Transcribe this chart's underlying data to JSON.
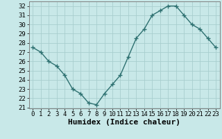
{
  "xlabel": "Humidex (Indice chaleur)",
  "x": [
    0,
    1,
    2,
    3,
    4,
    5,
    6,
    7,
    8,
    9,
    10,
    11,
    12,
    13,
    14,
    15,
    16,
    17,
    18,
    19,
    20,
    21,
    22,
    23
  ],
  "y": [
    27.5,
    27.0,
    26.0,
    25.5,
    24.5,
    23.0,
    22.5,
    21.5,
    21.3,
    22.5,
    23.5,
    24.5,
    26.5,
    28.5,
    29.5,
    31.0,
    31.5,
    32.0,
    32.0,
    31.0,
    30.0,
    29.5,
    28.5,
    27.5
  ],
  "line_color": "#2d7070",
  "marker": "+",
  "marker_size": 4,
  "bg_color": "#c8e8e8",
  "grid_color": "#a8cece",
  "ylim_min": 21,
  "ylim_max": 32.5,
  "xlim_min": -0.5,
  "xlim_max": 23.5,
  "yticks": [
    21,
    22,
    23,
    24,
    25,
    26,
    27,
    28,
    29,
    30,
    31,
    32
  ],
  "xticks": [
    0,
    1,
    2,
    3,
    4,
    5,
    6,
    7,
    8,
    9,
    10,
    11,
    12,
    13,
    14,
    15,
    16,
    17,
    18,
    19,
    20,
    21,
    22,
    23
  ],
  "tick_fontsize": 6.5,
  "xlabel_fontsize": 8,
  "linewidth": 1.0,
  "marker_linewidth": 1.0
}
